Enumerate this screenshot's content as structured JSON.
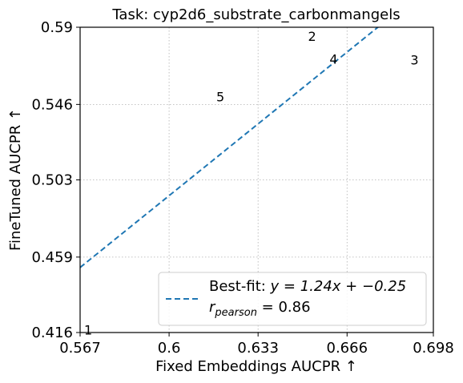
{
  "chart_data": {
    "type": "scatter",
    "title": "Task: cyp2d6_substrate_carbonmangels",
    "xlabel": "Fixed Embeddings AUCPR ↑",
    "ylabel": "FineTuned AUCPR ↑",
    "xlim": [
      0.567,
      0.698
    ],
    "ylim": [
      0.416,
      0.59
    ],
    "xticks": [
      "0.567",
      "0.6",
      "0.633",
      "0.666",
      "0.698"
    ],
    "yticks": [
      "0.416",
      "0.459",
      "0.503",
      "0.546",
      "0.59"
    ],
    "grid": true,
    "points": [
      {
        "label": "1",
        "x": 0.5685,
        "y": 0.4175
      },
      {
        "label": "2",
        "x": 0.6515,
        "y": 0.585
      },
      {
        "label": "3",
        "x": 0.6895,
        "y": 0.5715
      },
      {
        "label": "4",
        "x": 0.6595,
        "y": 0.572
      },
      {
        "label": "5",
        "x": 0.6175,
        "y": 0.5505
      }
    ],
    "fit": {
      "slope": 1.24,
      "intercept": -0.25,
      "color": "#1f77b4"
    },
    "legend": {
      "placement": "lower right",
      "fit_label": "Best-fit: y = 1.24x + −0.25",
      "r_label": "r_pearson = 0.86"
    }
  }
}
